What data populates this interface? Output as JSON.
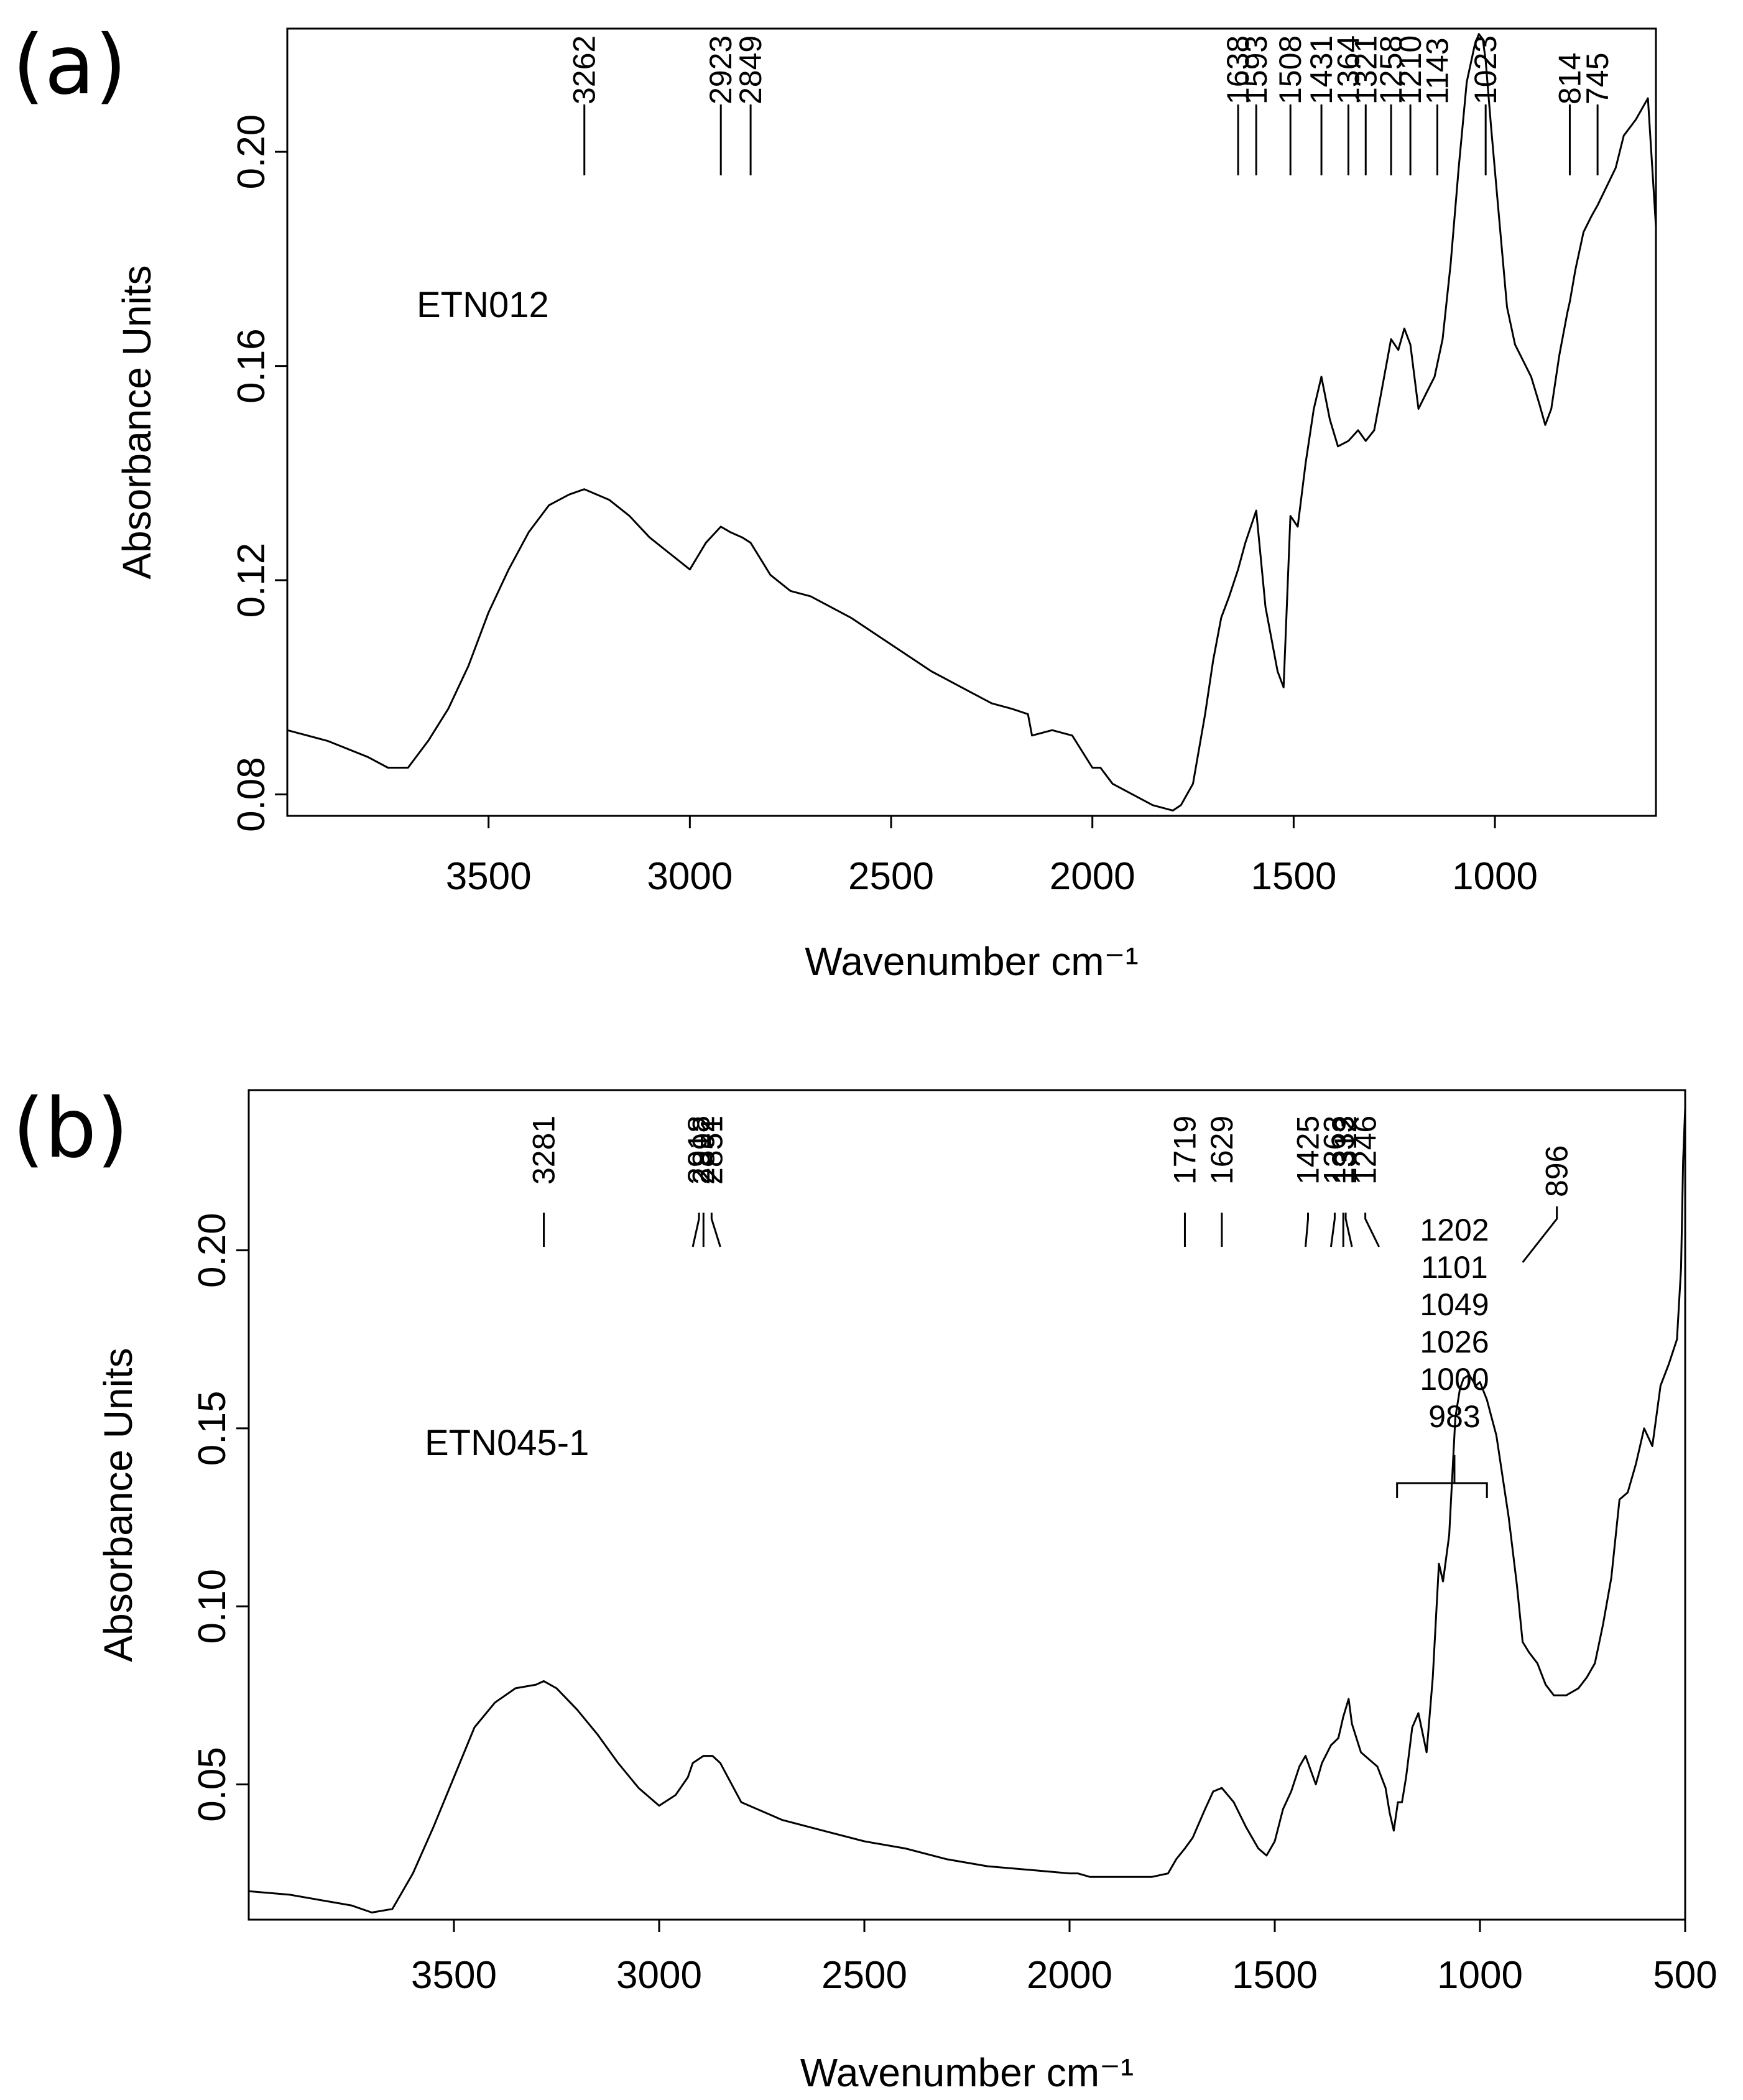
{
  "chart_data": [
    {
      "type": "line",
      "panel_label": "(a)",
      "sample_label": "ETN012",
      "xlabel": "Wavenumber cm⁻¹",
      "ylabel": "Absorbance Units",
      "x_reversed": true,
      "xlim": [
        4000,
        600
      ],
      "ylim": [
        0.076,
        0.223
      ],
      "xticks": [
        3500,
        3000,
        2500,
        2000,
        1500,
        1000
      ],
      "xtick_labels": [
        "3500",
        "3000",
        "2500",
        "2000",
        "1500",
        "1000"
      ],
      "yticks": [
        0.08,
        0.12,
        0.16,
        0.2
      ],
      "ytick_labels": [
        "0.08",
        "0.12",
        "0.16",
        "0.20"
      ],
      "peak_labels": [
        "3262",
        "2923",
        "2849",
        "1638",
        "1593",
        "1508",
        "1431",
        "1364",
        "1321",
        "1258",
        "1210",
        "1143",
        "1023",
        "814",
        "745"
      ],
      "peak_positions": [
        3262,
        2923,
        2849,
        1638,
        1593,
        1508,
        1431,
        1364,
        1321,
        1258,
        1210,
        1143,
        1023,
        814,
        745
      ],
      "series": [
        {
          "name": "ETN012",
          "x": [
            4000,
            3900,
            3800,
            3750,
            3700,
            3650,
            3600,
            3550,
            3500,
            3450,
            3400,
            3350,
            3300,
            3262,
            3200,
            3150,
            3100,
            3050,
            3000,
            2960,
            2923,
            2900,
            2870,
            2849,
            2800,
            2750,
            2700,
            2600,
            2500,
            2400,
            2350,
            2300,
            2250,
            2200,
            2160,
            2150,
            2100,
            2050,
            2000,
            1980,
            1950,
            1900,
            1850,
            1800,
            1780,
            1750,
            1720,
            1700,
            1680,
            1660,
            1638,
            1620,
            1593,
            1570,
            1540,
            1525,
            1508,
            1490,
            1470,
            1450,
            1431,
            1410,
            1390,
            1364,
            1340,
            1321,
            1300,
            1280,
            1258,
            1240,
            1225,
            1210,
            1190,
            1170,
            1150,
            1130,
            1110,
            1090,
            1070,
            1050,
            1040,
            1030,
            1023,
            1010,
            990,
            970,
            950,
            930,
            910,
            890,
            875,
            860,
            840,
            820,
            814,
            800,
            780,
            760,
            745,
            700,
            680,
            650,
            620,
            600
          ],
          "y": [
            0.092,
            0.09,
            0.087,
            0.085,
            0.085,
            0.09,
            0.096,
            0.104,
            0.114,
            0.122,
            0.129,
            0.134,
            0.136,
            0.137,
            0.135,
            0.132,
            0.128,
            0.125,
            0.122,
            0.127,
            0.13,
            0.129,
            0.128,
            0.127,
            0.121,
            0.118,
            0.117,
            0.113,
            0.108,
            0.103,
            0.101,
            0.099,
            0.097,
            0.096,
            0.095,
            0.091,
            0.092,
            0.091,
            0.085,
            0.085,
            0.082,
            0.08,
            0.078,
            0.077,
            0.078,
            0.082,
            0.095,
            0.105,
            0.113,
            0.117,
            0.122,
            0.127,
            0.133,
            0.115,
            0.103,
            0.1,
            0.132,
            0.13,
            0.142,
            0.152,
            0.158,
            0.15,
            0.145,
            0.146,
            0.148,
            0.146,
            0.148,
            0.156,
            0.165,
            0.163,
            0.167,
            0.164,
            0.152,
            0.155,
            0.158,
            0.165,
            0.179,
            0.197,
            0.213,
            0.22,
            0.222,
            0.221,
            0.217,
            0.205,
            0.188,
            0.171,
            0.164,
            0.161,
            0.158,
            0.153,
            0.149,
            0.152,
            0.162,
            0.17,
            0.172,
            0.178,
            0.185,
            0.188,
            0.19,
            0.197,
            0.203,
            0.206,
            0.21,
            0.186
          ]
        }
      ]
    },
    {
      "type": "line",
      "panel_label": "(b)",
      "sample_label": "ETN045-1",
      "xlabel": "Wavenumber cm⁻¹",
      "ylabel": "Absorbance Units",
      "x_reversed": true,
      "xlim": [
        4000,
        500
      ],
      "ylim": [
        0.012,
        0.245
      ],
      "xticks": [
        3500,
        3000,
        2500,
        2000,
        1500,
        1000,
        500
      ],
      "xtick_labels": [
        "3500",
        "3000",
        "2500",
        "2000",
        "1500",
        "1000",
        "500"
      ],
      "yticks": [
        0.05,
        0.1,
        0.15,
        0.2
      ],
      "ytick_labels": [
        "0.05",
        "0.10",
        "0.15",
        "0.20"
      ],
      "peak_labels": [
        "3281",
        "2918",
        "2892",
        "2851",
        "1719",
        "1629",
        "1425",
        "1363",
        "1333",
        "1312",
        "1246",
        "896"
      ],
      "peak_positions": [
        3281,
        2918,
        2892,
        2851,
        1719,
        1629,
        1425,
        1363,
        1333,
        1312,
        1246,
        896
      ],
      "bracket_labels": [
        "1202",
        "1101",
        "1049",
        "1026",
        "1000",
        "983"
      ],
      "bracket_range": [
        1202,
        983
      ],
      "series": [
        {
          "name": "ETN045-1",
          "x": [
            4000,
            3900,
            3800,
            3750,
            3700,
            3650,
            3600,
            3550,
            3500,
            3450,
            3400,
            3350,
            3300,
            3281,
            3250,
            3200,
            3150,
            3100,
            3050,
            3000,
            2960,
            2930,
            2918,
            2892,
            2870,
            2851,
            2800,
            2700,
            2600,
            2500,
            2400,
            2300,
            2200,
            2100,
            2000,
            1980,
            1950,
            1900,
            1850,
            1800,
            1760,
            1740,
            1719,
            1700,
            1670,
            1650,
            1629,
            1600,
            1570,
            1540,
            1520,
            1500,
            1480,
            1460,
            1440,
            1425,
            1400,
            1385,
            1363,
            1345,
            1333,
            1320,
            1312,
            1290,
            1270,
            1250,
            1230,
            1220,
            1210,
            1200,
            1190,
            1180,
            1165,
            1150,
            1130,
            1115,
            1100,
            1090,
            1075,
            1060,
            1049,
            1040,
            1026,
            1010,
            1000,
            983,
            960,
            930,
            910,
            896,
            880,
            860,
            840,
            820,
            790,
            760,
            740,
            720,
            700,
            680,
            660,
            640,
            620,
            600,
            580,
            560,
            540,
            520,
            510,
            505,
            500
          ],
          "y": [
            0.02,
            0.019,
            0.017,
            0.016,
            0.014,
            0.015,
            0.025,
            0.038,
            0.052,
            0.066,
            0.073,
            0.077,
            0.078,
            0.079,
            0.077,
            0.071,
            0.064,
            0.056,
            0.049,
            0.044,
            0.047,
            0.052,
            0.056,
            0.058,
            0.058,
            0.056,
            0.045,
            0.04,
            0.037,
            0.034,
            0.032,
            0.029,
            0.027,
            0.026,
            0.025,
            0.025,
            0.024,
            0.024,
            0.024,
            0.024,
            0.025,
            0.029,
            0.032,
            0.035,
            0.043,
            0.048,
            0.049,
            0.045,
            0.038,
            0.032,
            0.03,
            0.034,
            0.043,
            0.048,
            0.055,
            0.058,
            0.05,
            0.056,
            0.061,
            0.063,
            0.069,
            0.074,
            0.067,
            0.059,
            0.057,
            0.055,
            0.049,
            0.042,
            0.037,
            0.045,
            0.045,
            0.052,
            0.066,
            0.07,
            0.059,
            0.08,
            0.112,
            0.107,
            0.12,
            0.153,
            0.161,
            0.164,
            0.165,
            0.162,
            0.163,
            0.158,
            0.148,
            0.125,
            0.106,
            0.09,
            0.087,
            0.084,
            0.078,
            0.075,
            0.075,
            0.077,
            0.08,
            0.084,
            0.095,
            0.108,
            0.13,
            0.132,
            0.14,
            0.15,
            0.145,
            0.162,
            0.168,
            0.175,
            0.195,
            0.225,
            0.24
          ]
        }
      ]
    }
  ]
}
